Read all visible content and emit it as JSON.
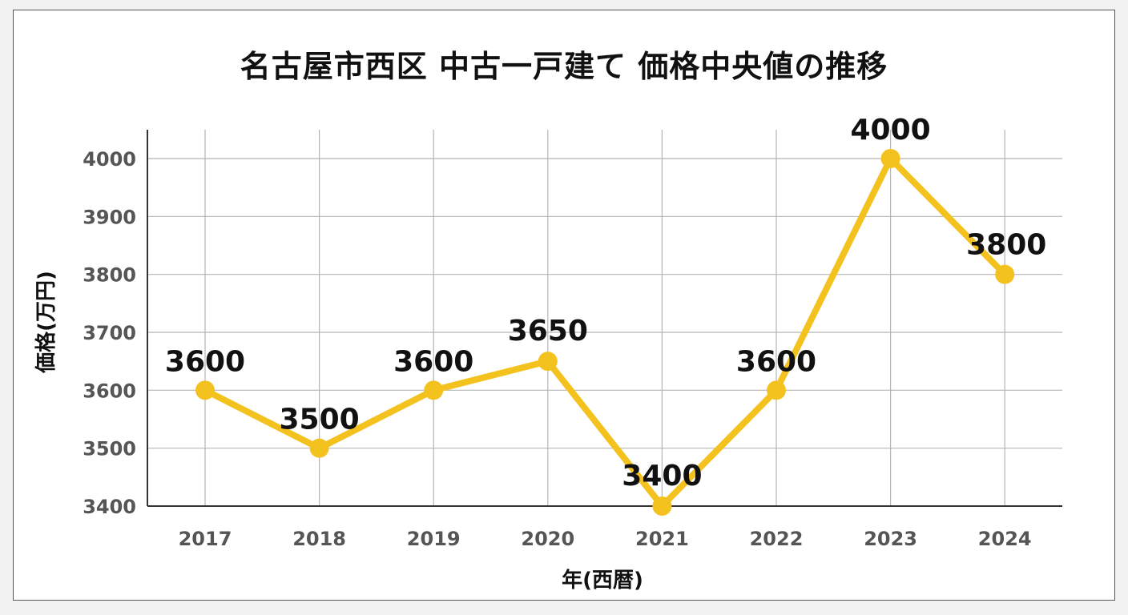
{
  "chart_data": {
    "type": "line",
    "title": "名古屋市西区 中古一戸建て 価格中央値の推移",
    "xlabel": "年(西暦)",
    "ylabel": "価格(万円)",
    "categories": [
      "2017",
      "2018",
      "2019",
      "2020",
      "2021",
      "2022",
      "2023",
      "2024"
    ],
    "series": [
      {
        "values": [
          3600,
          3500,
          3600,
          3650,
          3400,
          3600,
          4000,
          3800
        ],
        "color": "#f4c21f"
      }
    ],
    "ylim": [
      3400,
      4000
    ],
    "yticks": [
      3400,
      3500,
      3600,
      3700,
      3800,
      3900,
      4000
    ],
    "data_labels": [
      "3600",
      "3500",
      "3600",
      "3650",
      "3400",
      "3600",
      "4000",
      "3800"
    ],
    "grid": true,
    "legend": "none"
  }
}
